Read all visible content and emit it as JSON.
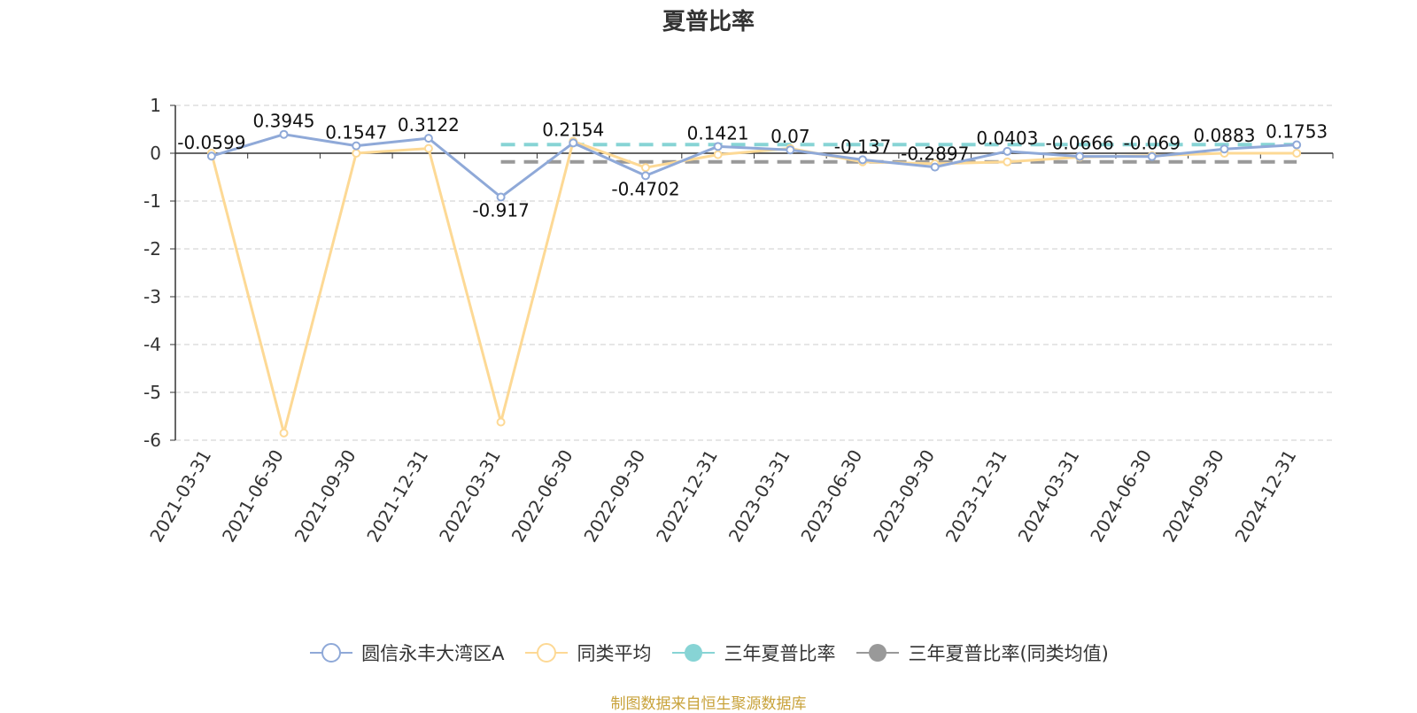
{
  "chart_data": {
    "type": "line",
    "title": "夏普比率",
    "categories": [
      "2021-03-31",
      "2021-06-30",
      "2021-09-30",
      "2021-12-31",
      "2022-03-31",
      "2022-06-30",
      "2022-09-30",
      "2022-12-31",
      "2023-03-31",
      "2023-06-30",
      "2023-09-30",
      "2023-12-31",
      "2024-03-31",
      "2024-06-30",
      "2024-09-30",
      "2024-12-31"
    ],
    "ylim": [
      -6,
      1
    ],
    "yticks": [
      "1",
      "0",
      "-1",
      "-2",
      "-3",
      "-4",
      "-5",
      "-6"
    ],
    "grid": true,
    "legend_position": "bottom",
    "series": [
      {
        "name": "圆信永丰大湾区A",
        "color": "#8fa9d8",
        "values": [
          -0.0599,
          0.3945,
          0.1547,
          0.3122,
          -0.917,
          0.2154,
          -0.4702,
          0.1421,
          0.07,
          -0.137,
          -0.2897,
          0.0403,
          -0.0666,
          -0.069,
          0.0883,
          0.1753
        ],
        "labels": [
          "-0.0599",
          "0.3945",
          "0.1547",
          "0.3122",
          "-0.917",
          "0.2154",
          "-0.4702",
          "0.1421",
          "0.07",
          "-0.137",
          "-0.2897",
          "0.0403",
          "-0.0666",
          "-0.069",
          "0.0883",
          "0.1753"
        ]
      },
      {
        "name": "同类平均",
        "color": "#fdd995",
        "values": [
          0.0,
          -5.85,
          0.0,
          0.1,
          -5.62,
          0.25,
          -0.3,
          -0.03,
          0.1,
          -0.18,
          -0.22,
          -0.18,
          -0.08,
          -0.05,
          0.0,
          0.0
        ]
      },
      {
        "name": "三年夏普比率",
        "color": "#87d4d5",
        "dashed": true,
        "x_start": "2022-03-31",
        "values_const": 0.18
      },
      {
        "name": "三年夏普比率(同类均值)",
        "color": "#999999",
        "dashed": true,
        "x_start": "2022-03-31",
        "values_const": -0.18
      }
    ]
  },
  "source": "制图数据来自恒生聚源数据库"
}
